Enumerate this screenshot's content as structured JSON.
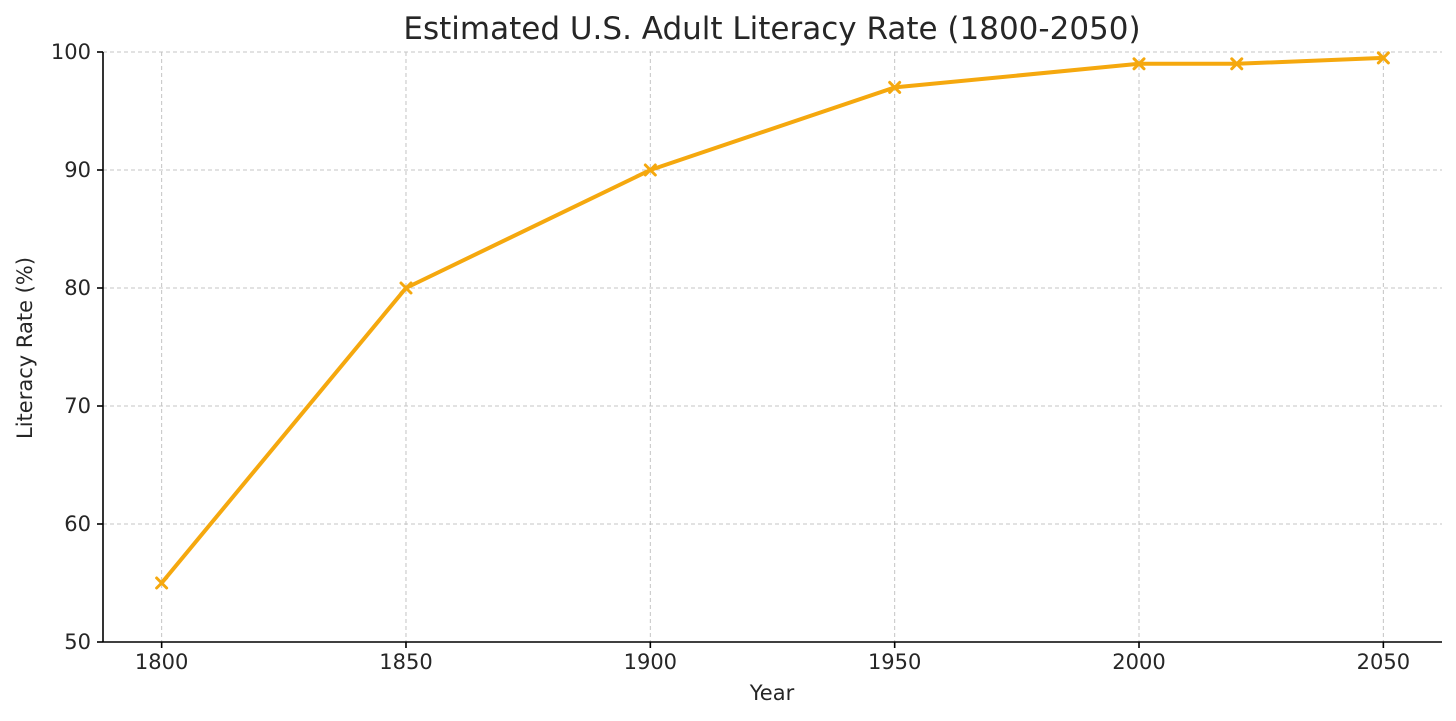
{
  "chart_data": {
    "type": "line",
    "title": "Estimated U.S. Adult Literacy Rate (1800-2050)",
    "xlabel": "Year",
    "ylabel": "Literacy Rate (%)",
    "xlim": [
      1788,
      2062
    ],
    "ylim": [
      50,
      100
    ],
    "xticks": [
      1800,
      1850,
      1900,
      1950,
      2000,
      2050
    ],
    "yticks": [
      50,
      60,
      70,
      80,
      90,
      100
    ],
    "grid": true,
    "x": [
      1800,
      1850,
      1900,
      1950,
      2000,
      2020,
      2050
    ],
    "series": [
      {
        "values": [
          55,
          80,
          90,
          97,
          99,
          99,
          99.5
        ],
        "color": "#f5a80e",
        "marker": "x"
      }
    ]
  }
}
